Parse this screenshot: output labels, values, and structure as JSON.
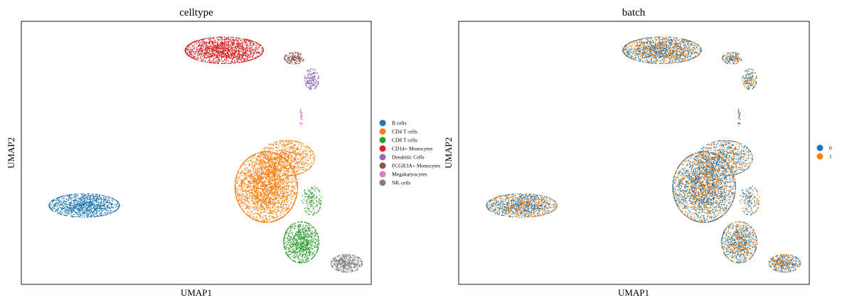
{
  "chart_data": [
    {
      "type": "scatter",
      "title": "celltype",
      "xlabel": "UMAP1",
      "ylabel": "UMAP2",
      "xticks": false,
      "yticks": false,
      "grid": false,
      "legend_position": "right",
      "x_range": [
        0,
        1
      ],
      "y_range": [
        0,
        1
      ],
      "series": [
        {
          "name": "B cells",
          "color": "#1f77b4",
          "clusters": [
            {
              "cx": 0.18,
              "cy": 0.3,
              "rx": 0.09,
              "ry": 0.04,
              "n": 1100
            }
          ]
        },
        {
          "name": "CD4 T cells",
          "color": "#ff7f0e",
          "clusters": [
            {
              "cx": 0.7,
              "cy": 0.37,
              "rx": 0.08,
              "ry": 0.12,
              "n": 2600
            },
            {
              "cx": 0.76,
              "cy": 0.48,
              "rx": 0.07,
              "ry": 0.06,
              "n": 800
            }
          ]
        },
        {
          "name": "CD8 T cells",
          "color": "#2ca02c",
          "clusters": [
            {
              "cx": 0.8,
              "cy": 0.16,
              "rx": 0.045,
              "ry": 0.07,
              "n": 850
            },
            {
              "cx": 0.83,
              "cy": 0.32,
              "rx": 0.025,
              "ry": 0.05,
              "n": 150
            }
          ]
        },
        {
          "name": "CD14+ Monocytes",
          "color": "#d62728",
          "clusters": [
            {
              "cx": 0.58,
              "cy": 0.89,
              "rx": 0.1,
              "ry": 0.045,
              "n": 1500
            }
          ]
        },
        {
          "name": "Dendritic Cells",
          "color": "#9467bd",
          "clusters": [
            {
              "cx": 0.83,
              "cy": 0.78,
              "rx": 0.018,
              "ry": 0.035,
              "n": 160
            }
          ]
        },
        {
          "name": "FCGR3A+ Monocytes",
          "color": "#8c564b",
          "clusters": [
            {
              "cx": 0.78,
              "cy": 0.86,
              "rx": 0.025,
              "ry": 0.02,
              "n": 170
            }
          ]
        },
        {
          "name": "Megakaryocytes",
          "color": "#e377c2",
          "clusters": [
            {
              "cx": 0.8,
              "cy": 0.64,
              "rx": 0.004,
              "ry": 0.035,
              "n": 28
            }
          ]
        },
        {
          "name": "NK cells",
          "color": "#7f7f7f",
          "clusters": [
            {
              "cx": 0.93,
              "cy": 0.08,
              "rx": 0.04,
              "ry": 0.03,
              "n": 400
            }
          ]
        }
      ]
    },
    {
      "type": "scatter",
      "title": "batch",
      "xlabel": "UMAP1",
      "ylabel": "UMAP2",
      "xticks": false,
      "yticks": false,
      "grid": false,
      "legend_position": "right",
      "x_range": [
        0,
        1
      ],
      "y_range": [
        0,
        1
      ],
      "series": [
        {
          "name": "0",
          "color": "#1f77b4"
        },
        {
          "name": "1",
          "color": "#ff7f0e"
        }
      ],
      "mixing_fraction_batch1": 0.45
    }
  ]
}
